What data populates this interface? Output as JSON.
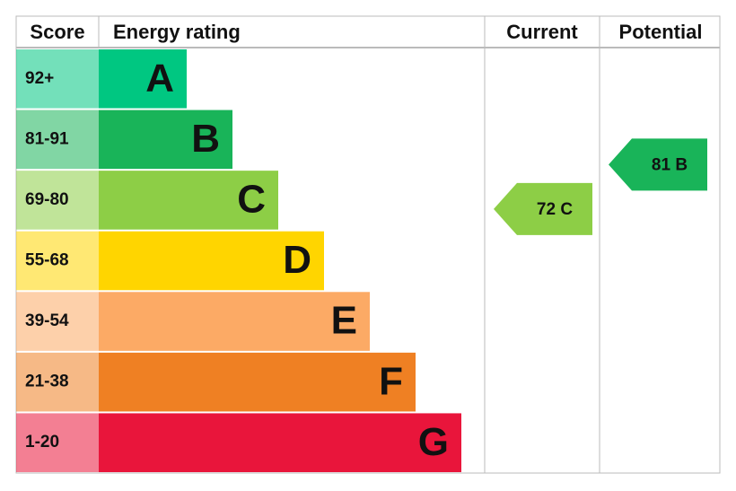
{
  "header": {
    "score": "Score",
    "rating": "Energy rating",
    "current": "Current",
    "potential": "Potential"
  },
  "bands": [
    {
      "score": "92+",
      "letter": "A",
      "color": "#00c781"
    },
    {
      "score": "81-91",
      "letter": "B",
      "color": "#19b459"
    },
    {
      "score": "69-80",
      "letter": "C",
      "color": "#8dce46"
    },
    {
      "score": "55-68",
      "letter": "D",
      "color": "#ffd500"
    },
    {
      "score": "39-54",
      "letter": "E",
      "color": "#fcaa65"
    },
    {
      "score": "21-38",
      "letter": "F",
      "color": "#ef8023"
    },
    {
      "score": "1-20",
      "letter": "G",
      "color": "#e9153b"
    }
  ],
  "current": {
    "label": "72 C"
  },
  "potential": {
    "label": "81 B"
  }
}
